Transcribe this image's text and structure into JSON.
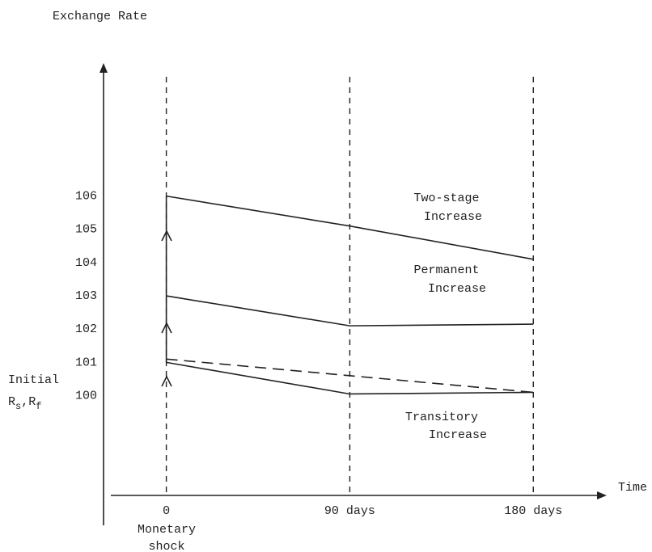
{
  "chart_data": {
    "type": "line",
    "title": "Exchange Rate",
    "ylabel": [
      "Initial",
      "R",
      "s",
      ",R",
      "f"
    ],
    "xlabel": "Time",
    "x": [
      0,
      90,
      180
    ],
    "xticks": [
      {
        "value": 0,
        "label": "0"
      },
      {
        "value": 90,
        "label": "90 days"
      },
      {
        "value": 180,
        "label": "180 days"
      }
    ],
    "xlim": [
      -30,
      216
    ],
    "ylim": [
      97,
      110
    ],
    "yticks": [
      100,
      101,
      102,
      103,
      104,
      105,
      106
    ],
    "shock_label": [
      "Monetary",
      "shock"
    ],
    "annotations": [
      [
        "Two-stage",
        "Increase"
      ],
      [
        "Permanent",
        "Increase"
      ],
      [
        "Transitory",
        "Increase"
      ]
    ],
    "series": [
      {
        "color": "#222",
        "dashed": false,
        "values": [
          106,
          105.1,
          104.1
        ]
      },
      {
        "color": "#222",
        "dashed": false,
        "values": [
          103,
          102.1,
          102.15
        ]
      },
      {
        "color": "#222",
        "dashed": false,
        "values": [
          101,
          100.05,
          100.1
        ]
      },
      {
        "color": "#222",
        "dashed": true,
        "values": [
          101.1,
          100.6,
          100.1
        ]
      }
    ]
  }
}
